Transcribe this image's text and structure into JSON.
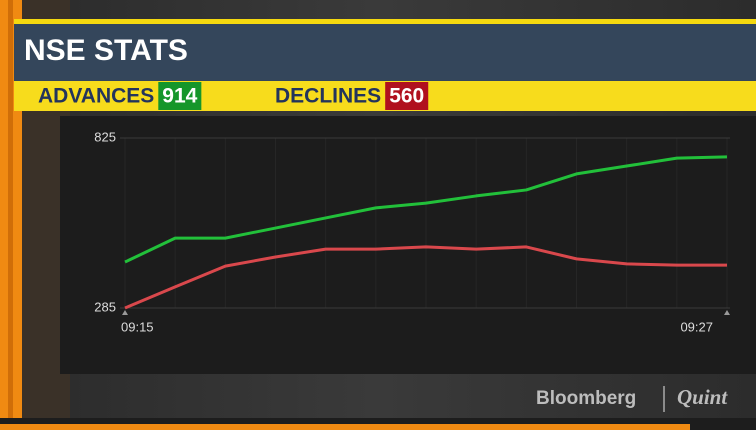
{
  "chart_data": {
    "type": "line",
    "title": "NSE STATS",
    "categories": [
      "09:15",
      null,
      null,
      null,
      null,
      null,
      null,
      null,
      null,
      null,
      null,
      null,
      "09:27"
    ],
    "series": [
      {
        "name": "ADVANCES",
        "count": 914,
        "color": "#22c03a",
        "badge_color": "#15962a",
        "values": [
          431,
          507,
          507,
          539,
          571,
          603,
          618,
          641,
          660,
          711,
          736,
          761,
          765
        ]
      },
      {
        "name": "DECLINES",
        "count": 560,
        "color": "#d9484c",
        "badge_color": "#b0101e",
        "values": [
          285,
          352,
          418,
          447,
          472,
          472,
          479,
          472,
          479,
          441,
          425,
          421,
          421
        ]
      }
    ],
    "ylim": [
      285,
      825
    ],
    "yticks": [
      285,
      825
    ],
    "grid": true,
    "branding": [
      "Bloomberg",
      "Quint"
    ]
  }
}
